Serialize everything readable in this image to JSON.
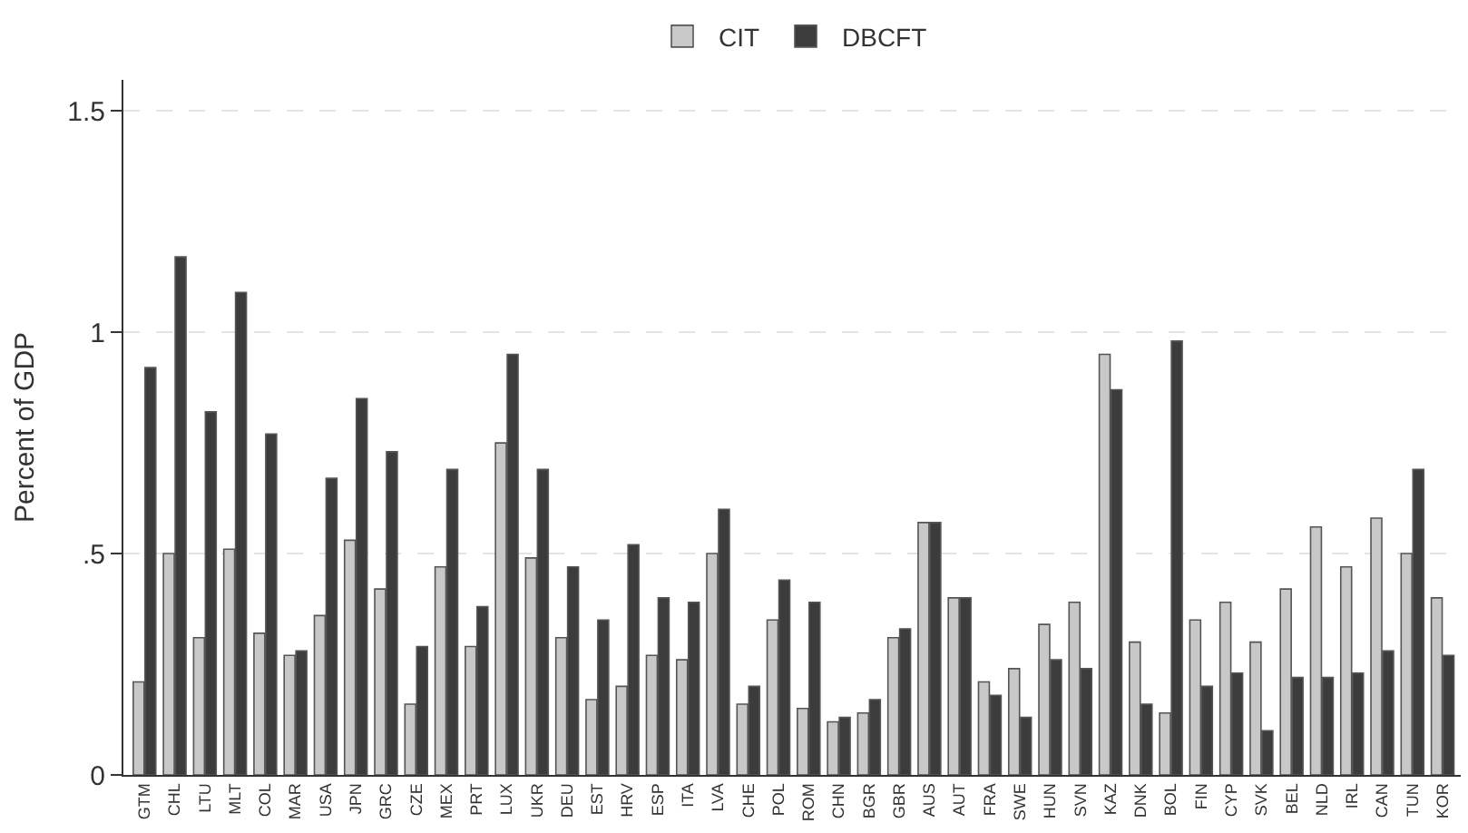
{
  "chart_data": {
    "type": "bar",
    "ylabel": "Percent of GDP",
    "categories": [
      "GTM",
      "CHL",
      "LTU",
      "MLT",
      "COL",
      "MAR",
      "USA",
      "JPN",
      "GRC",
      "CZE",
      "MEX",
      "PRT",
      "LUX",
      "UKR",
      "DEU",
      "EST",
      "HRV",
      "ESP",
      "ITA",
      "LVA",
      "CHE",
      "POL",
      "ROM",
      "CHN",
      "BGR",
      "GBR",
      "AUS",
      "AUT",
      "FRA",
      "SWE",
      "HUN",
      "SVN",
      "KAZ",
      "DNK",
      "BOL",
      "FIN",
      "CYP",
      "SVK",
      "BEL",
      "NLD",
      "IRL",
      "CAN",
      "TUN",
      "KOR"
    ],
    "series": [
      {
        "name": "CIT",
        "color": "#c8c8c8",
        "values": [
          0.21,
          0.5,
          0.31,
          0.51,
          0.32,
          0.27,
          0.36,
          0.53,
          0.42,
          0.16,
          0.47,
          0.29,
          0.75,
          0.49,
          0.31,
          0.17,
          0.2,
          0.27,
          0.26,
          0.5,
          0.16,
          0.35,
          0.15,
          0.12,
          0.14,
          0.31,
          0.57,
          0.4,
          0.21,
          0.24,
          0.34,
          0.39,
          0.95,
          0.3,
          0.14,
          0.35,
          0.39,
          0.3,
          0.42,
          0.56,
          0.47,
          0.58,
          0.5,
          0.4
        ]
      },
      {
        "name": "DBCFT",
        "color": "#3c3c3c",
        "values": [
          0.92,
          1.17,
          0.82,
          1.09,
          0.77,
          0.28,
          0.67,
          0.85,
          0.73,
          0.29,
          0.69,
          0.38,
          0.95,
          0.69,
          0.47,
          0.35,
          0.52,
          0.4,
          0.39,
          0.6,
          0.2,
          0.44,
          0.39,
          0.13,
          0.17,
          0.33,
          0.57,
          0.4,
          0.18,
          0.13,
          0.26,
          0.24,
          0.87,
          0.16,
          0.98,
          0.2,
          0.23,
          0.1,
          0.22,
          0.22,
          0.23,
          0.28,
          0.69,
          0.27
        ]
      }
    ],
    "ylim": [
      0,
      1.57
    ],
    "yticks": [
      0,
      {
        "value": 0.5,
        "label": ".5"
      },
      1,
      1.5
    ],
    "grid": "y",
    "legend": "top"
  }
}
